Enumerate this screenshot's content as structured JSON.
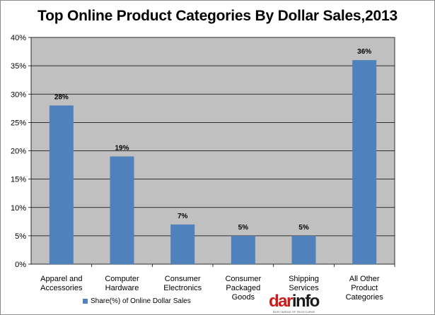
{
  "chart_data": {
    "type": "bar",
    "title": "Top Online Product Categories By Dollar Sales,2013",
    "categories": [
      [
        "Apparel and",
        "Accessories"
      ],
      [
        "Computer",
        "Hardware"
      ],
      [
        "Consumer",
        "Electronics"
      ],
      [
        "Consumer",
        "Packaged",
        "Goods"
      ],
      [
        "Shipping",
        "Services"
      ],
      [
        "All Other",
        "Product",
        "Categories"
      ]
    ],
    "series": [
      {
        "name": "Share(%) of Online Dollar Sales",
        "values": [
          28,
          19,
          7,
          5,
          5,
          36
        ],
        "data_labels": [
          "28%",
          "19%",
          "7%",
          "5%",
          "5%",
          "36%"
        ],
        "color": "#4f81bd"
      }
    ],
    "ylim": [
      0,
      40
    ],
    "yticks": [
      "0%",
      "5%",
      "10%",
      "15%",
      "20%",
      "25%",
      "30%",
      "35%",
      "40%"
    ],
    "grid": true,
    "legend_position": "bottom-left",
    "plot_background": "#c0c0c0",
    "gridline_color": "#000000"
  },
  "watermark": {
    "logo_part1": "dar",
    "logo_part2": "info",
    "tagline": "BUSY AHEAD OF TECH CURVE"
  }
}
